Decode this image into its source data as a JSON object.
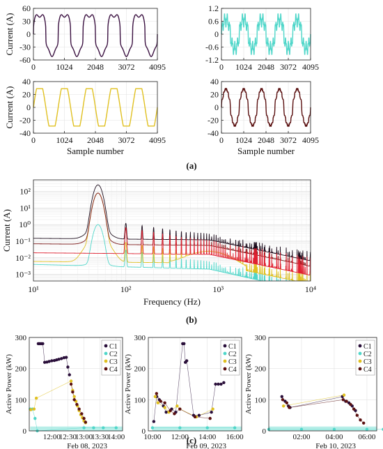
{
  "figure": {
    "panel_labels": [
      "(a)",
      "(b)",
      "(c)"
    ]
  },
  "chart_data": [
    {
      "id": "a1",
      "type": "line",
      "ylabel": "Current (A)",
      "xlabel": "",
      "xlim": [
        0,
        4095
      ],
      "ylim": [
        -60,
        60
      ],
      "xticks": [
        0,
        1024,
        2048,
        3072,
        4095
      ],
      "yticks": [
        -60,
        -30,
        0,
        30,
        60
      ],
      "grid": true,
      "color": "#3a1040",
      "series": [
        {
          "waveform": "rectifier",
          "periods": 5,
          "amplitude": 52,
          "values_shown": "peak ≈ ±52 A"
        }
      ]
    },
    {
      "id": "a2",
      "type": "line",
      "ylabel": "",
      "xlabel": "",
      "xlim": [
        0,
        4095
      ],
      "ylim": [
        -1.2,
        1.2
      ],
      "xticks": [
        0,
        1024,
        2048,
        3072,
        4095
      ],
      "yticks": [
        -1.2,
        -0.6,
        0,
        0.6,
        1.2
      ],
      "grid": true,
      "color": "#4fd6c9",
      "series": [
        {
          "waveform": "noisy",
          "periods": 5,
          "amplitude": 0.95
        }
      ]
    },
    {
      "id": "a3",
      "type": "line",
      "ylabel": "Current (A)",
      "xlabel": "Sample number",
      "xlim": [
        0,
        4095
      ],
      "ylim": [
        -40,
        40
      ],
      "xticks": [
        0,
        1024,
        2048,
        3072,
        4095
      ],
      "yticks": [
        -40,
        -20,
        0,
        20,
        40
      ],
      "grid": true,
      "color": "#e0c020",
      "series": [
        {
          "waveform": "trapezoid",
          "periods": 5,
          "amplitude": 29
        }
      ]
    },
    {
      "id": "a4",
      "type": "line",
      "ylabel": "",
      "xlabel": "Sample number",
      "xlim": [
        0,
        4095
      ],
      "ylim": [
        -40,
        40
      ],
      "xticks": [
        0,
        1024,
        2048,
        3072,
        4095
      ],
      "yticks": [
        -40,
        -20,
        0,
        20,
        40
      ],
      "grid": true,
      "color": "#5a1010",
      "series": [
        {
          "waveform": "stepped",
          "periods": 5,
          "amplitude": 30
        }
      ]
    },
    {
      "id": "b",
      "type": "line",
      "xscale": "log",
      "yscale": "log",
      "xlabel": "Frequency (Hz)",
      "ylabel": "Current (A)",
      "xlim": [
        10,
        10000
      ],
      "ylim": [
        0.0004,
        500
      ],
      "xticks": [
        10,
        100,
        1000,
        10000
      ],
      "xtick_labels": [
        "10¹",
        "10²",
        "10³",
        "10⁴"
      ],
      "yticks": [
        0.001,
        0.01,
        0.1,
        1,
        10,
        100
      ],
      "ytick_labels": [
        "10⁻³",
        "10⁻²",
        "10⁻¹",
        "10⁰",
        "10¹",
        "10²"
      ],
      "grid": true,
      "series": [
        {
          "color": "#4fd6c9",
          "fundamental_peak": 1.0,
          "floor": 0.004
        },
        {
          "color": "#e0c020",
          "fundamental_peak": 80,
          "floor": 0.006
        },
        {
          "color": "#7a1515",
          "fundamental_peak": 80,
          "floor": 0.07
        },
        {
          "color": "#1a0a1a",
          "fundamental_peak": 250,
          "floor": 0.15
        },
        {
          "color": "#e02030",
          "fundamental_peak": 0,
          "floor": 0.02
        }
      ]
    },
    {
      "id": "c1",
      "type": "scatter",
      "ylabel": "Active Power (kW)",
      "date_label": "Feb 08, 2023",
      "xtick_labels": [
        "12:00",
        "12:30",
        "13:00",
        "13:30",
        "14:00"
      ],
      "ylim": [
        0,
        300
      ],
      "yticks": [
        0,
        100,
        200,
        300
      ],
      "legend": [
        "C1",
        "C2",
        "C3",
        "C4"
      ],
      "legend_position": "top-right",
      "colors": {
        "C1": "#2a0f3a",
        "C2": "#4fd6c9",
        "C3": "#e0c020",
        "C4": "#5a1010"
      },
      "series": [
        {
          "name": "C1",
          "points": [
            [
              11.58,
              280
            ],
            [
              11.62,
              280
            ],
            [
              11.67,
              280
            ],
            [
              11.72,
              280
            ],
            [
              11.78,
              220
            ],
            [
              11.85,
              221
            ],
            [
              11.92,
              223
            ],
            [
              12.0,
              225
            ],
            [
              12.08,
              226
            ],
            [
              12.15,
              228
            ],
            [
              12.22,
              230
            ],
            [
              12.3,
              232
            ],
            [
              12.38,
              235
            ],
            [
              12.45,
              236
            ],
            [
              12.5,
              205
            ],
            [
              12.55,
              180
            ]
          ]
        },
        {
          "name": "C2",
          "points": [
            [
              11.33,
              70
            ],
            [
              11.4,
              70
            ],
            [
              11.48,
              40
            ],
            [
              11.55,
              0
            ],
            [
              13.0,
              10
            ],
            [
              13.3,
              10
            ],
            [
              13.6,
              10
            ],
            [
              14.0,
              10
            ]
          ]
        },
        {
          "name": "C3",
          "points": [
            [
              11.35,
              68
            ],
            [
              11.45,
              70
            ],
            [
              11.52,
              105
            ],
            [
              12.6,
              160
            ],
            [
              12.65,
              130
            ],
            [
              12.7,
              110
            ],
            [
              12.75,
              95
            ],
            [
              12.8,
              80
            ],
            [
              12.85,
              65
            ],
            [
              12.9,
              52
            ],
            [
              12.95,
              42
            ],
            [
              13.0,
              32
            ],
            [
              13.05,
              26
            ]
          ]
        },
        {
          "name": "C4",
          "points": [
            [
              12.6,
              150
            ],
            [
              12.65,
              125
            ],
            [
              12.7,
              100
            ],
            [
              12.78,
              85
            ],
            [
              12.85,
              70
            ],
            [
              12.93,
              55
            ],
            [
              13.0,
              40
            ],
            [
              13.05,
              28
            ]
          ]
        }
      ]
    },
    {
      "id": "c2",
      "type": "scatter",
      "ylabel": "Active Power (kW)",
      "date_label": "Feb 09, 2023",
      "xtick_labels": [
        "10:00",
        "12:00",
        "14:00",
        "16:00"
      ],
      "ylim": [
        0,
        300
      ],
      "yticks": [
        0,
        100,
        200,
        300
      ],
      "legend": [
        "C1",
        "C2",
        "C3",
        "C4"
      ],
      "legend_position": "top-right",
      "colors": {
        "C1": "#2a0f3a",
        "C2": "#4fd6c9",
        "C3": "#e0c020",
        "C4": "#5a1010"
      },
      "series": [
        {
          "name": "C1",
          "points": [
            [
              10.1,
              30
            ],
            [
              10.3,
              110
            ],
            [
              10.5,
              100
            ],
            [
              10.8,
              80
            ],
            [
              11.0,
              60
            ],
            [
              11.4,
              70
            ],
            [
              11.7,
              60
            ],
            [
              12.2,
              280
            ],
            [
              12.3,
              280
            ],
            [
              12.4,
              220
            ],
            [
              12.5,
              225
            ],
            [
              13.0,
              50
            ],
            [
              13.4,
              50
            ],
            [
              14.3,
              60
            ],
            [
              14.6,
              150
            ],
            [
              14.8,
              150
            ],
            [
              15.0,
              150
            ],
            [
              15.2,
              155
            ]
          ]
        },
        {
          "name": "C2",
          "points": [
            [
              10.0,
              10
            ],
            [
              12.0,
              10
            ],
            [
              14.0,
              10
            ],
            [
              16.0,
              10
            ]
          ]
        },
        {
          "name": "C3",
          "points": [
            [
              10.2,
              110
            ],
            [
              10.4,
              90
            ],
            [
              10.9,
              75
            ],
            [
              11.2,
              60
            ],
            [
              11.8,
              80
            ],
            [
              12.0,
              70
            ],
            [
              13.2,
              45
            ],
            [
              14.4,
              70
            ]
          ]
        },
        {
          "name": "C4",
          "points": [
            [
              10.3,
              120
            ],
            [
              10.6,
              95
            ],
            [
              10.9,
              90
            ],
            [
              11.3,
              65
            ],
            [
              11.6,
              55
            ],
            [
              12.0,
              70
            ],
            [
              13.1,
              45
            ],
            [
              14.2,
              40
            ]
          ]
        }
      ]
    },
    {
      "id": "c3",
      "type": "scatter",
      "ylabel": "Active Power (kW)",
      "date_label": "Feb 10, 2023",
      "xtick_labels": [
        "02:00",
        "04:00",
        "06:00"
      ],
      "ylim": [
        0,
        300
      ],
      "yticks": [
        0,
        100,
        200,
        300
      ],
      "legend": [
        "C1",
        "C2",
        "C3",
        "C4"
      ],
      "legend_position": "top-right",
      "colors": {
        "C1": "#2a0f3a",
        "C2": "#4fd6c9",
        "C3": "#e0c020",
        "C4": "#5a1010"
      },
      "series": [
        {
          "name": "C1",
          "points": [
            [
              0.8,
              110
            ],
            [
              1.0,
              95
            ],
            [
              1.2,
              80
            ],
            [
              1.3,
              75
            ],
            [
              4.5,
              110
            ],
            [
              4.7,
              95
            ],
            [
              4.9,
              90
            ],
            [
              5.1,
              80
            ],
            [
              5.3,
              65
            ]
          ]
        },
        {
          "name": "C2",
          "points": [
            [
              0.0,
              5
            ],
            [
              2.0,
              5
            ],
            [
              4.0,
              5
            ],
            [
              6.0,
              5
            ],
            [
              7.0,
              5
            ]
          ]
        },
        {
          "name": "C3",
          "points": [
            [
              0.9,
              80
            ],
            [
              4.6,
              115
            ]
          ]
        },
        {
          "name": "C4",
          "points": [
            [
              0.85,
              100
            ],
            [
              1.1,
              90
            ],
            [
              1.25,
              75
            ],
            [
              4.55,
              100
            ],
            [
              4.75,
              95
            ],
            [
              5.0,
              85
            ],
            [
              5.2,
              70
            ],
            [
              5.4,
              50
            ],
            [
              5.6,
              35
            ],
            [
              5.8,
              25
            ]
          ]
        }
      ]
    }
  ]
}
